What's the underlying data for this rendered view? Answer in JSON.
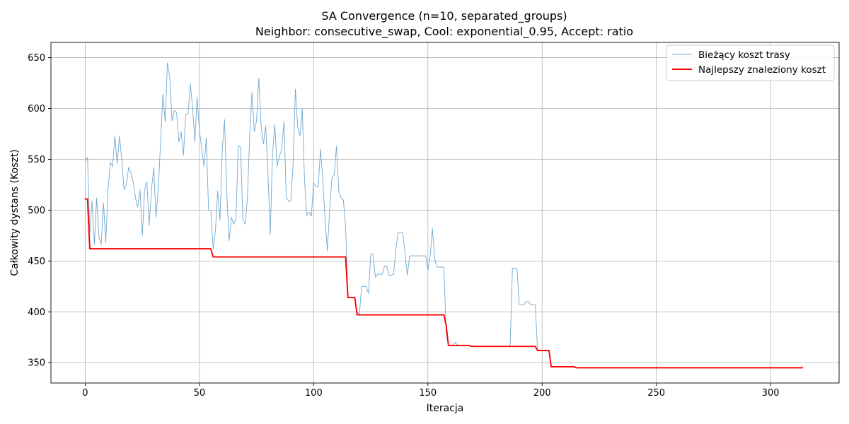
{
  "chart_data": {
    "type": "line",
    "title": "SA Convergence (n=10, separated_groups)",
    "subtitle": "Neighbor: consecutive_swap, Cool: exponential_0.95, Accept: ratio",
    "xlabel": "Iteracja",
    "ylabel": "Całkowity dystans (Koszt)",
    "xlim": [
      -15,
      330
    ],
    "ylim": [
      330,
      665
    ],
    "xticks": [
      0,
      50,
      100,
      150,
      200,
      250,
      300
    ],
    "yticks": [
      350,
      400,
      450,
      500,
      550,
      600,
      650
    ],
    "grid": true,
    "legend_position": "top-right",
    "series": [
      {
        "name": "Bieżący koszt trasy",
        "color": "#6fa8d0",
        "line_width": 0.9,
        "points": [
          [
            0,
            548
          ],
          [
            1,
            552
          ],
          [
            2,
            478
          ],
          [
            3,
            509
          ],
          [
            4,
            466
          ],
          [
            5,
            512
          ],
          [
            6,
            474
          ],
          [
            7,
            466
          ],
          [
            8,
            507
          ],
          [
            9,
            468
          ],
          [
            10,
            520
          ],
          [
            11,
            547
          ],
          [
            12,
            543
          ],
          [
            13,
            573
          ],
          [
            14,
            546
          ],
          [
            15,
            573
          ],
          [
            16,
            550
          ],
          [
            17,
            520
          ],
          [
            18,
            525
          ],
          [
            19,
            542
          ],
          [
            20,
            537
          ],
          [
            21,
            528
          ],
          [
            22,
            512
          ],
          [
            23,
            503
          ],
          [
            24,
            520
          ],
          [
            25,
            475
          ],
          [
            26,
            520
          ],
          [
            27,
            528
          ],
          [
            28,
            485
          ],
          [
            29,
            520
          ],
          [
            30,
            542
          ],
          [
            31,
            493
          ],
          [
            32,
            522
          ],
          [
            33,
            567
          ],
          [
            34,
            614
          ],
          [
            35,
            587
          ],
          [
            36,
            645
          ],
          [
            37,
            631
          ],
          [
            38,
            588
          ],
          [
            39,
            598
          ],
          [
            40,
            596
          ],
          [
            41,
            567
          ],
          [
            42,
            577
          ],
          [
            43,
            554
          ],
          [
            44,
            594
          ],
          [
            45,
            594
          ],
          [
            46,
            624
          ],
          [
            47,
            601
          ],
          [
            48,
            567
          ],
          [
            49,
            611
          ],
          [
            50,
            578
          ],
          [
            51,
            561
          ],
          [
            52,
            543
          ],
          [
            53,
            571
          ],
          [
            54,
            500
          ],
          [
            55,
            500
          ],
          [
            56,
            462
          ],
          [
            57,
            480
          ],
          [
            58,
            519
          ],
          [
            59,
            490
          ],
          [
            60,
            560
          ],
          [
            61,
            589
          ],
          [
            62,
            515
          ],
          [
            63,
            470
          ],
          [
            64,
            493
          ],
          [
            65,
            486
          ],
          [
            66,
            492
          ],
          [
            67,
            563
          ],
          [
            68,
            562
          ],
          [
            69,
            492
          ],
          [
            70,
            486
          ],
          [
            71,
            512
          ],
          [
            72,
            572
          ],
          [
            73,
            616
          ],
          [
            74,
            577
          ],
          [
            75,
            588
          ],
          [
            76,
            630
          ],
          [
            77,
            582
          ],
          [
            78,
            565
          ],
          [
            79,
            583
          ],
          [
            80,
            535
          ],
          [
            81,
            476
          ],
          [
            82,
            556
          ],
          [
            83,
            584
          ],
          [
            84,
            543
          ],
          [
            85,
            553
          ],
          [
            86,
            560
          ],
          [
            87,
            587
          ],
          [
            88,
            513
          ],
          [
            89,
            509
          ],
          [
            90,
            509
          ],
          [
            91,
            545
          ],
          [
            92,
            619
          ],
          [
            93,
            582
          ],
          [
            94,
            573
          ],
          [
            95,
            600
          ],
          [
            96,
            530
          ],
          [
            97,
            495
          ],
          [
            98,
            498
          ],
          [
            99,
            494
          ],
          [
            100,
            527
          ],
          [
            101,
            523
          ],
          [
            102,
            523
          ],
          [
            103,
            560
          ],
          [
            104,
            530
          ],
          [
            105,
            490
          ],
          [
            106,
            460
          ],
          [
            107,
            500
          ],
          [
            108,
            532
          ],
          [
            109,
            535
          ],
          [
            110,
            563
          ],
          [
            111,
            518
          ],
          [
            112,
            512
          ],
          [
            113,
            510
          ],
          [
            114,
            484
          ],
          [
            115,
            414
          ],
          [
            116,
            414
          ],
          [
            117,
            414
          ],
          [
            118,
            414
          ],
          [
            119,
            400
          ],
          [
            120,
            397
          ],
          [
            121,
            425
          ],
          [
            122,
            425
          ],
          [
            123,
            425
          ],
          [
            124,
            418
          ],
          [
            125,
            457
          ],
          [
            126,
            457
          ],
          [
            127,
            434
          ],
          [
            128,
            437
          ],
          [
            129,
            437
          ],
          [
            130,
            437
          ],
          [
            131,
            445
          ],
          [
            132,
            445
          ],
          [
            133,
            436
          ],
          [
            134,
            436
          ],
          [
            135,
            437
          ],
          [
            136,
            462
          ],
          [
            137,
            478
          ],
          [
            138,
            478
          ],
          [
            139,
            478
          ],
          [
            140,
            458
          ],
          [
            141,
            436
          ],
          [
            142,
            455
          ],
          [
            143,
            455
          ],
          [
            144,
            455
          ],
          [
            145,
            455
          ],
          [
            146,
            455
          ],
          [
            147,
            455
          ],
          [
            148,
            455
          ],
          [
            149,
            455
          ],
          [
            150,
            441
          ],
          [
            151,
            455
          ],
          [
            152,
            482
          ],
          [
            153,
            452
          ],
          [
            154,
            444
          ],
          [
            155,
            444
          ],
          [
            156,
            444
          ],
          [
            157,
            444
          ],
          [
            158,
            380
          ],
          [
            159,
            367
          ],
          [
            160,
            367
          ],
          [
            161,
            367
          ],
          [
            162,
            370
          ],
          [
            163,
            367
          ],
          [
            164,
            367
          ],
          [
            165,
            367
          ],
          [
            166,
            367
          ],
          [
            167,
            367
          ],
          [
            168,
            367
          ],
          [
            169,
            366
          ],
          [
            170,
            366
          ],
          [
            171,
            366
          ],
          [
            172,
            366
          ],
          [
            173,
            366
          ],
          [
            174,
            366
          ],
          [
            175,
            366
          ],
          [
            176,
            366
          ],
          [
            177,
            366
          ],
          [
            178,
            366
          ],
          [
            179,
            366
          ],
          [
            180,
            366
          ],
          [
            181,
            366
          ],
          [
            182,
            366
          ],
          [
            183,
            366
          ],
          [
            184,
            366
          ],
          [
            185,
            366
          ],
          [
            186,
            366
          ],
          [
            187,
            443
          ],
          [
            188,
            443
          ],
          [
            189,
            443
          ],
          [
            190,
            407
          ],
          [
            191,
            407
          ],
          [
            192,
            407
          ],
          [
            193,
            410
          ],
          [
            194,
            410
          ],
          [
            195,
            407
          ],
          [
            196,
            407
          ],
          [
            197,
            407
          ],
          [
            198,
            362
          ],
          [
            199,
            362
          ],
          [
            200,
            362
          ],
          [
            201,
            362
          ],
          [
            202,
            362
          ],
          [
            203,
            362
          ],
          [
            204,
            346
          ],
          [
            205,
            346
          ],
          [
            206,
            346
          ],
          [
            207,
            346
          ],
          [
            208,
            346
          ],
          [
            209,
            346
          ],
          [
            210,
            346
          ],
          [
            211,
            346
          ],
          [
            212,
            346
          ],
          [
            213,
            346
          ],
          [
            214,
            346
          ],
          [
            215,
            345
          ],
          [
            216,
            345
          ],
          [
            230,
            345
          ],
          [
            250,
            345
          ],
          [
            270,
            345
          ],
          [
            290,
            345
          ],
          [
            314,
            345
          ]
        ]
      },
      {
        "name": "Najlepszy znaleziony koszt",
        "color": "#ff0000",
        "line_width": 1.9,
        "points": [
          [
            0,
            511
          ],
          [
            1,
            511
          ],
          [
            2,
            462
          ],
          [
            55,
            462
          ],
          [
            56,
            454
          ],
          [
            114,
            454
          ],
          [
            115,
            414
          ],
          [
            118,
            414
          ],
          [
            119,
            397
          ],
          [
            157,
            397
          ],
          [
            158,
            387
          ],
          [
            159,
            367
          ],
          [
            168,
            367
          ],
          [
            169,
            366
          ],
          [
            197,
            366
          ],
          [
            198,
            362
          ],
          [
            203,
            362
          ],
          [
            204,
            346
          ],
          [
            214,
            346
          ],
          [
            215,
            345
          ],
          [
            314,
            345
          ]
        ]
      }
    ]
  }
}
